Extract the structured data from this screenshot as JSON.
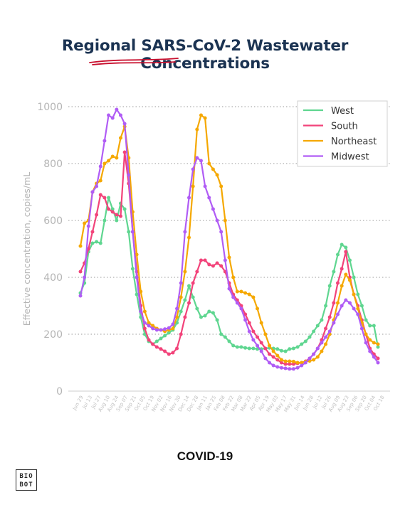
{
  "header": {
    "title": "Regional SARS-CoV-2 Wastewater Concentrations"
  },
  "footer": {
    "label": "COVID-19",
    "logo_line1": "BIO",
    "logo_line2": "BOT"
  },
  "chart_data": {
    "type": "line",
    "title": "Regional SARS-CoV-2 Wastewater Concentrations",
    "xlabel": "",
    "ylabel": "Effective concentration, copies/mL",
    "ylim": [
      0,
      1000
    ],
    "yticks": [
      0,
      200,
      400,
      600,
      800,
      1000
    ],
    "grid": "horizontal dotted",
    "legend_position": "top-right",
    "x_tick_labels": [
      "Jun 29",
      "Jul 13",
      "Jul 27",
      "Aug 10",
      "Aug 24",
      "Sep 07",
      "Sep 21",
      "Oct 05",
      "Oct 19",
      "Nov 02",
      "Nov 16",
      "Nov 30",
      "Dec 14",
      "Dec 28",
      "Jan 11",
      "Jan 25",
      "Feb 08",
      "Feb 22",
      "Mar 08",
      "Mar 22",
      "Apr 05",
      "Apr 19",
      "May 03",
      "May 17",
      "May 31",
      "Jun 14",
      "Jun 28",
      "Jul 12",
      "Jul 26",
      "Aug 09",
      "Aug 23",
      "Sep 06",
      "Sep 20",
      "Oct 04",
      "Oct 18"
    ],
    "series": [
      {
        "name": "West",
        "color": "#5fd690",
        "values": [
          345,
          380,
          490,
          520,
          525,
          520,
          600,
          680,
          640,
          600,
          660,
          640,
          560,
          430,
          340,
          260,
          200,
          175,
          165,
          175,
          185,
          195,
          205,
          215,
          240,
          280,
          320,
          370,
          330,
          290,
          260,
          265,
          280,
          275,
          250,
          200,
          190,
          175,
          160,
          155,
          155,
          152,
          150,
          150,
          148,
          148,
          150,
          152,
          150,
          148,
          142,
          140,
          148,
          150,
          155,
          165,
          175,
          190,
          210,
          230,
          250,
          300,
          370,
          420,
          480,
          515,
          505,
          460,
          400,
          340,
          300,
          250,
          230,
          230,
          155
        ]
      },
      {
        "name": "South",
        "color": "#f2437a",
        "values": [
          420,
          450,
          500,
          560,
          620,
          690,
          680,
          640,
          630,
          620,
          615,
          840,
          730,
          560,
          420,
          300,
          220,
          180,
          165,
          155,
          148,
          140,
          130,
          135,
          150,
          200,
          260,
          310,
          380,
          420,
          460,
          460,
          445,
          440,
          450,
          440,
          420,
          380,
          340,
          320,
          300,
          270,
          240,
          210,
          190,
          170,
          150,
          130,
          120,
          110,
          100,
          95,
          95,
          95,
          98,
          100,
          105,
          115,
          130,
          150,
          180,
          220,
          260,
          310,
          380,
          430,
          490,
          400,
          340,
          300,
          250,
          200,
          150,
          130,
          115
        ]
      },
      {
        "name": "Northeast",
        "color": "#f5a800",
        "values": [
          510,
          590,
          600,
          700,
          730,
          740,
          800,
          810,
          825,
          820,
          890,
          930,
          820,
          630,
          480,
          350,
          280,
          240,
          230,
          220,
          215,
          210,
          215,
          220,
          260,
          330,
          420,
          540,
          720,
          920,
          970,
          960,
          800,
          780,
          760,
          720,
          600,
          470,
          400,
          350,
          350,
          345,
          340,
          330,
          290,
          240,
          200,
          160,
          140,
          125,
          110,
          105,
          105,
          104,
          100,
          100,
          104,
          106,
          110,
          120,
          140,
          165,
          200,
          250,
          310,
          370,
          410,
          390,
          340,
          290,
          240,
          200,
          180,
          170,
          165
        ]
      },
      {
        "name": "Midwest",
        "color": "#b05cf5",
        "values": [
          335,
          400,
          580,
          700,
          720,
          790,
          880,
          970,
          960,
          990,
          970,
          940,
          760,
          560,
          400,
          280,
          240,
          230,
          220,
          215,
          215,
          218,
          222,
          235,
          290,
          380,
          560,
          680,
          780,
          820,
          810,
          720,
          680,
          640,
          600,
          560,
          460,
          360,
          330,
          310,
          290,
          250,
          210,
          180,
          160,
          140,
          115,
          100,
          90,
          85,
          82,
          80,
          78,
          78,
          82,
          90,
          100,
          115,
          130,
          150,
          170,
          190,
          210,
          240,
          270,
          300,
          320,
          310,
          290,
          270,
          220,
          170,
          140,
          120,
          100
        ]
      }
    ]
  }
}
